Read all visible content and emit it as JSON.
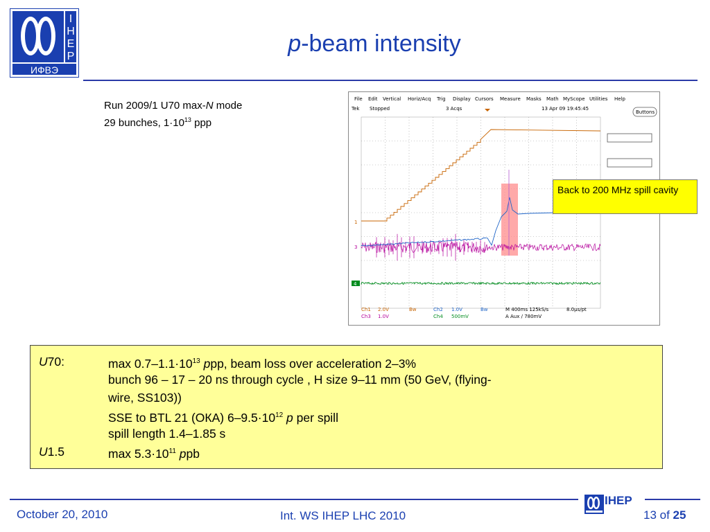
{
  "logo": {
    "letters": [
      "I",
      "H",
      "E",
      "P"
    ],
    "cyrillic": "ИФВЭ"
  },
  "title": {
    "italic": "p",
    "rest": "-beam intensity"
  },
  "run_info": {
    "line1_pre": "Run 2009/1 U70 max-",
    "line1_italic": "N",
    "line1_post": " mode",
    "line2_pre": "29 bunches, 1·10",
    "line2_sup": "13",
    "line2_post": " ppp"
  },
  "scope": {
    "menu": [
      "File",
      "Edit",
      "Vertical",
      "Horiz/Acq",
      "Trig",
      "Display",
      "Cursors",
      "Measure",
      "Masks",
      "Math",
      "MyScope",
      "Utilities",
      "Help"
    ],
    "status_left": "Tek",
    "status_state": "Stopped",
    "status_acqs": "3 Acqs",
    "status_time": "13 Apr 09 19:45:45",
    "buttons_label": "Buttons",
    "ch1": "Ch1",
    "ch1_scale": "2.0V",
    "ch1_bw": "Bw",
    "ch2": "Ch2",
    "ch2_scale": "1.0V",
    "ch2_bw": "Bw",
    "ch3": "Ch3",
    "ch3_scale": "1.0V",
    "ch4": "Ch4",
    "ch4_scale": "500mV",
    "horiz": "M 400ms 125kS/s",
    "horiz_pt": "8.0μs/pt",
    "trig": "A  Aux  ∕  780mV",
    "marker1": "1",
    "marker3": "3",
    "marker4": "4"
  },
  "callout": "Back to  200 MHz spill cavity",
  "info": {
    "r1_label_italic": "U",
    "r1_label": "70:",
    "r1_pre": "max 0.7–1.1·10",
    "r1_sup": "13",
    "r1_italic": " p",
    "r1_post": "pp,  beam loss over acceleration 2–3%",
    "r2": "bunch 96 – 17 – 20 ns through cycle , H size 9–11 mm (50 GeV, (flying-",
    "r3": "wire, SS103))",
    "r4_pre": "SSE to BTL 21 (ОКА) 6–9.5·10",
    "r4_sup": "12",
    "r4_italic": " p",
    "r4_post": " per spill",
    "r5": "spill length 1.4–1.85 s",
    "r6_label_italic": "U",
    "r6_label": "1.5",
    "r6_pre": "max 5.3·10",
    "r6_sup": "11",
    "r6_italic": " p",
    "r6_post": "pb"
  },
  "footer": {
    "date": "October 20, 2010",
    "conference": "Int. WS IHEP LHC 2010",
    "brand": "IHEP",
    "page_current": "13",
    "page_of": " of ",
    "page_total": "25"
  },
  "colors": {
    "accent": "#1a3fb0",
    "yellow_box": "#ffff99",
    "callout": "#ffff00",
    "ch_orange": "#c86400",
    "ch_blue": "#1e64c8",
    "ch_magenta": "#b4009a",
    "ch_green": "#008c1e"
  }
}
